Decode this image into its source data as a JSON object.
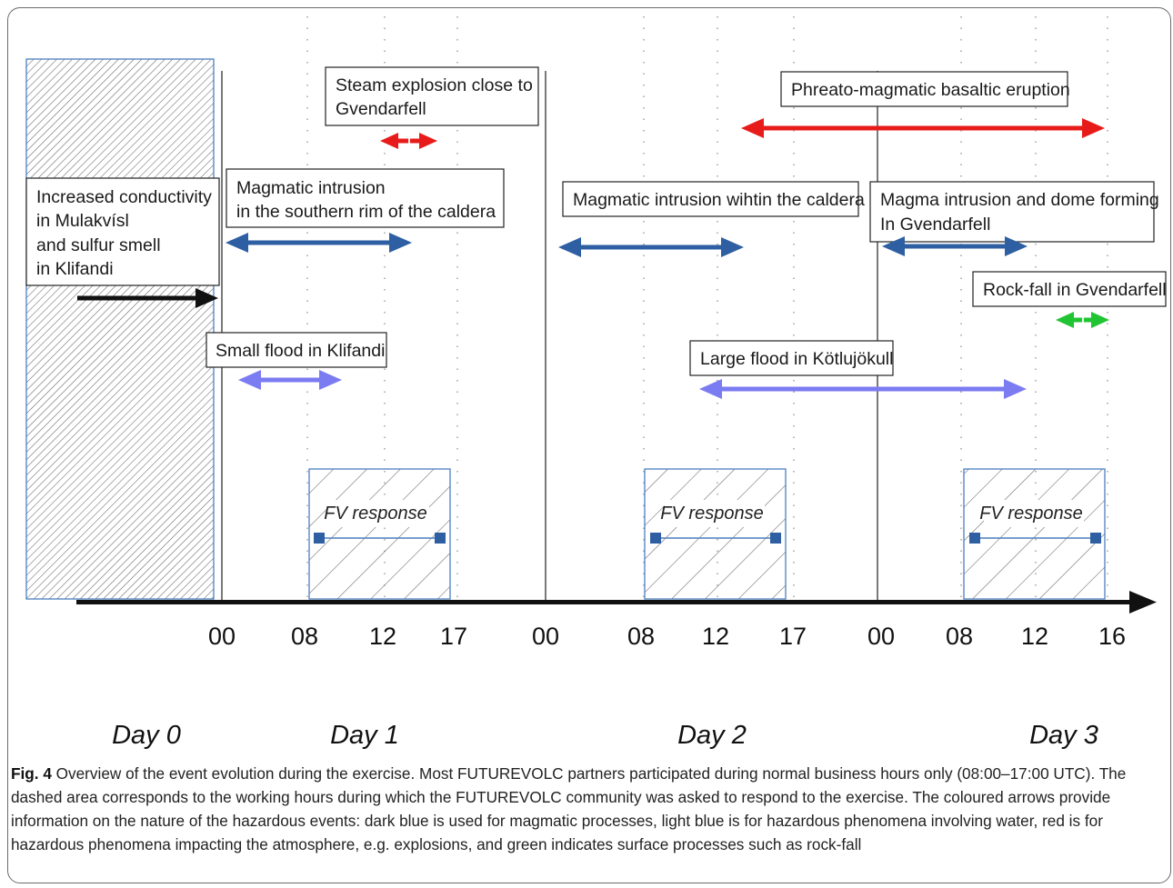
{
  "events": {
    "increased_conductivity": [
      "Increased conductivity",
      "in Mulakvísl",
      "and sulfur smell",
      "in Klifandi"
    ],
    "steam_explosion": [
      "Steam explosion close to",
      "Gvendarfell"
    ],
    "phreato_magmatic": [
      "Phreato-magmatic basaltic eruption"
    ],
    "magmatic_intrusion_south": [
      "Magmatic intrusion",
      "in the southern rim of the caldera"
    ],
    "magmatic_intrusion_caldera": [
      "Magmatic intrusion wihtin the caldera"
    ],
    "magma_dome": [
      "Magma intrusion and dome forming",
      "In Gvendarfell"
    ],
    "rock_fall": [
      "Rock-fall in Gvendarfell"
    ],
    "small_flood": [
      "Small flood in Klifandi"
    ],
    "large_flood": [
      "Large flood in Kötlujökull"
    ]
  },
  "fv_response": "FV response",
  "timeline": {
    "ticks": [
      "00",
      "08",
      "12",
      "17",
      "00",
      "08",
      "12",
      "17",
      "00",
      "08",
      "12",
      "16"
    ],
    "days": [
      "Day 0",
      "Day 1",
      "Day 2",
      "Day 3"
    ]
  },
  "colors": {
    "magmatic": "#2e5fa3",
    "water": "#7b7bf2",
    "atmosphere": "#e81b1b",
    "surface": "#21c433",
    "response_box": "#4a7fc1"
  },
  "caption": {
    "label": "Fig. 4",
    "text": " Overview of the event evolution during the exercise. Most FUTUREVOLC partners participated during normal business hours only (08:00–17:00 UTC). The dashed area corresponds to the working hours during which the FUTUREVOLC community was asked to respond to the exercise. The coloured arrows provide information on the nature of the hazardous events: dark blue is used for magmatic processes, light blue is for hazardous phenomena involving water, red is for hazardous phenomena impacting the atmosphere, e.g. explosions, and green indicates surface processes such as rock-fall"
  }
}
